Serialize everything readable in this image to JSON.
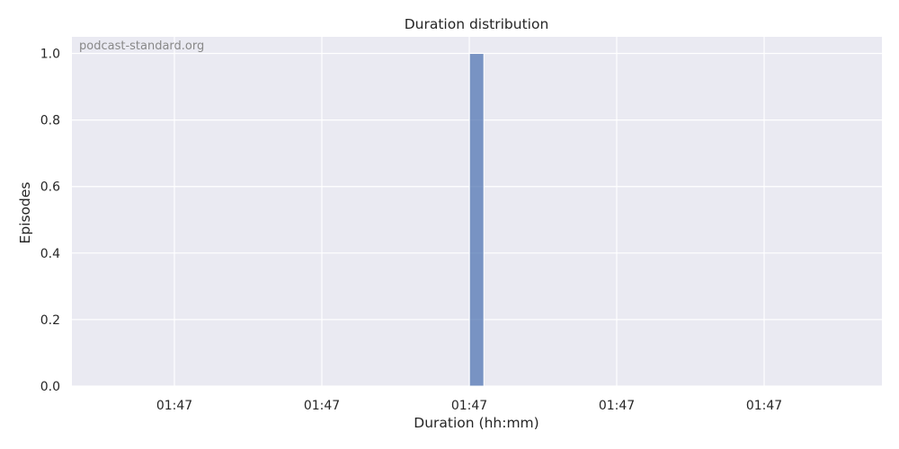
{
  "chart_data": {
    "type": "bar",
    "title": "Duration distribution",
    "xlabel": "Duration (hh:mm)",
    "ylabel": "Episodes",
    "watermark": "podcast-standard.org",
    "x_tick_labels": [
      "01:47",
      "01:47",
      "01:47",
      "01:47",
      "01:47"
    ],
    "y_ticks": [
      "0.0",
      "0.2",
      "0.4",
      "0.6",
      "0.8",
      "1.0"
    ],
    "y_tick_values": [
      0,
      0.2,
      0.4,
      0.6,
      0.8,
      1.0
    ],
    "ylim": [
      0,
      1.05
    ],
    "bars": [
      {
        "x_tick_position": 2.05,
        "value": 1
      }
    ],
    "grid": true,
    "bar_color": "#4c72b0",
    "background_color": "#eaeaf2"
  }
}
